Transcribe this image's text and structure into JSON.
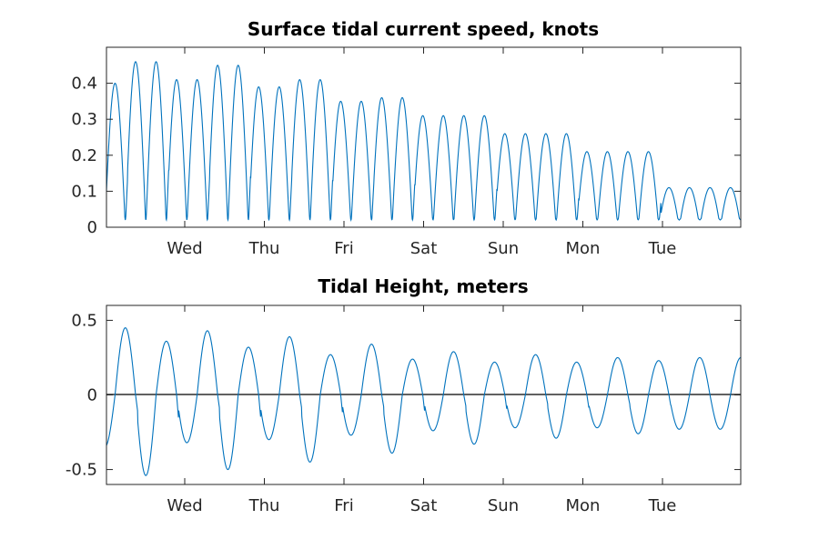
{
  "chart_data": [
    {
      "type": "line",
      "title": "Surface tidal current speed, knots",
      "xlabel": "",
      "ylabel": "",
      "x_tick_labels": [
        "Wed",
        "Thu",
        "Fri",
        "Sat",
        "Sun",
        "Mon",
        "Tue"
      ],
      "x": [
        0.0,
        0.25,
        0.5,
        0.75,
        1.0,
        1.25,
        1.5,
        1.75,
        2.0,
        2.25,
        2.5,
        2.75,
        3.0,
        3.25,
        3.5,
        3.75,
        4.0,
        4.25,
        4.5,
        4.75,
        5.0,
        5.25,
        5.5,
        5.75,
        6.0,
        6.25,
        6.5,
        6.75,
        7.0,
        7.25,
        7.5,
        7.75,
        8.0
      ],
      "ylim": [
        0,
        0.5
      ],
      "y_ticks": [
        "0",
        "0.1",
        "0.2",
        "0.3",
        "0.4"
      ],
      "y_tick_values": [
        0,
        0.1,
        0.2,
        0.3,
        0.4
      ],
      "grid": false,
      "series_color": "#0072BD",
      "peaks": [
        0.4,
        0.46,
        0.41,
        0.45,
        0.39,
        0.41,
        0.35,
        0.36,
        0.31,
        0.31,
        0.26,
        0.26,
        0.21,
        0.21,
        0.11,
        0.11,
        0.17
      ]
    },
    {
      "type": "line",
      "title": "Tidal Height, meters",
      "xlabel": "",
      "ylabel": "",
      "x_tick_labels": [
        "Wed",
        "Thu",
        "Fri",
        "Sat",
        "Sun",
        "Mon",
        "Tue"
      ],
      "ylim": [
        -0.6,
        0.6
      ],
      "y_ticks": [
        "-0.5",
        "0",
        "0.5"
      ],
      "y_tick_values": [
        -0.5,
        0,
        0.5
      ],
      "grid": false,
      "zero_line": true,
      "series_color": "#0072BD",
      "highs": [
        0.45,
        0.36,
        0.43,
        0.32,
        0.39,
        0.27,
        0.34,
        0.24,
        0.29,
        0.22,
        0.27,
        0.22,
        0.25,
        0.23,
        0.25
      ],
      "lows": [
        -0.35,
        -0.54,
        -0.32,
        -0.5,
        -0.3,
        -0.45,
        -0.27,
        -0.39,
        -0.24,
        -0.33,
        -0.22,
        -0.29,
        -0.22,
        -0.26,
        -0.23
      ]
    }
  ]
}
